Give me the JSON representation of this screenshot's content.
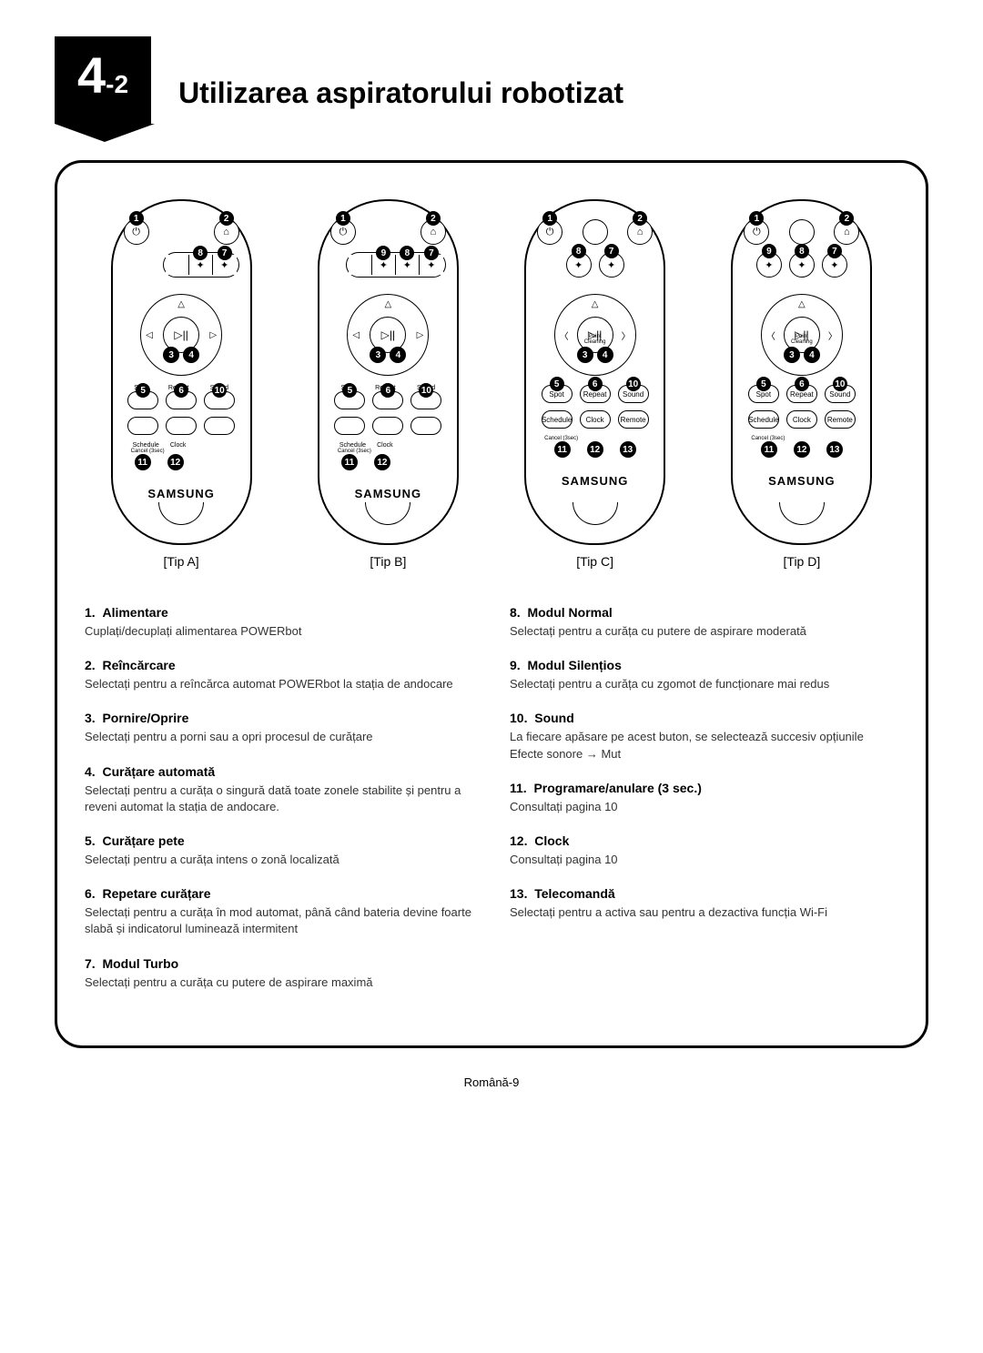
{
  "section": {
    "major": "4",
    "minor": "-2"
  },
  "title": "Utilizarea aspiratorului robotizat",
  "remotes": [
    {
      "label": "[Tip A]",
      "silent": false,
      "remote_btn": false,
      "style": "oval"
    },
    {
      "label": "[Tip B]",
      "silent": true,
      "remote_btn": false,
      "style": "oval"
    },
    {
      "label": "[Tip C]",
      "silent": false,
      "remote_btn": true,
      "style": "round"
    },
    {
      "label": "[Tip D]",
      "silent": true,
      "remote_btn": true,
      "style": "round"
    }
  ],
  "brand": "SAMSUNG",
  "btn_labels": {
    "spot": "Spot",
    "repeat": "Repeat",
    "sound": "Sound",
    "schedule": "Schedule",
    "clock": "Clock",
    "remote": "Remote",
    "cancel": "Cancel (3sec)",
    "point": "Point Cleaning"
  },
  "descriptions": {
    "left": [
      {
        "n": "1",
        "title": "Alimentare",
        "body": "Cuplați/decuplați alimentarea POWERbot"
      },
      {
        "n": "2",
        "title": "Reîncărcare",
        "body": "Selectați pentru a reîncărca automat POWERbot la stația de andocare"
      },
      {
        "n": "3",
        "title": "Pornire/Oprire",
        "body": "Selectați pentru a porni sau a opri procesul de curățare"
      },
      {
        "n": "4",
        "title": "Curățare automată",
        "body": "Selectați pentru a curăța o singură dată toate zonele stabilite și pentru a reveni automat la stația de andocare."
      },
      {
        "n": "5",
        "title": "Curățare pete",
        "body": "Selectați pentru a curăța intens o zonă localizată"
      },
      {
        "n": "6",
        "title": "Repetare curățare",
        "body": "Selectați pentru a curăța în mod automat, până când bateria devine foarte slabă și indicatorul luminează intermitent"
      },
      {
        "n": "7",
        "title": "Modul Turbo",
        "body": "Selectați pentru a curăța cu putere de aspirare maximă"
      }
    ],
    "right": [
      {
        "n": "8",
        "title": "Modul Normal",
        "body": "Selectați pentru a curăța cu putere de aspirare moderată"
      },
      {
        "n": "9",
        "title": "Modul Silențios",
        "body": "Selectați pentru a curăța cu zgomot de funcționare mai redus"
      },
      {
        "n": "10",
        "title": "Sound",
        "body": "La fiecare apăsare pe acest buton, se selectează succesiv opțiunile Efecte sonore → Mut"
      },
      {
        "n": "11",
        "title": "Programare/anulare (3 sec.)",
        "body": "Consultați pagina  10"
      },
      {
        "n": "12",
        "title": "Clock",
        "body": "Consultați pagina  10"
      },
      {
        "n": "13",
        "title": "Telecomandă",
        "body": "Selectați pentru a activa sau pentru a dezactiva funcția Wi-Fi"
      }
    ]
  },
  "footer": "Română-9",
  "markers": [
    "1",
    "2",
    "3",
    "4",
    "5",
    "6",
    "7",
    "8",
    "9",
    "10",
    "11",
    "12",
    "13"
  ]
}
